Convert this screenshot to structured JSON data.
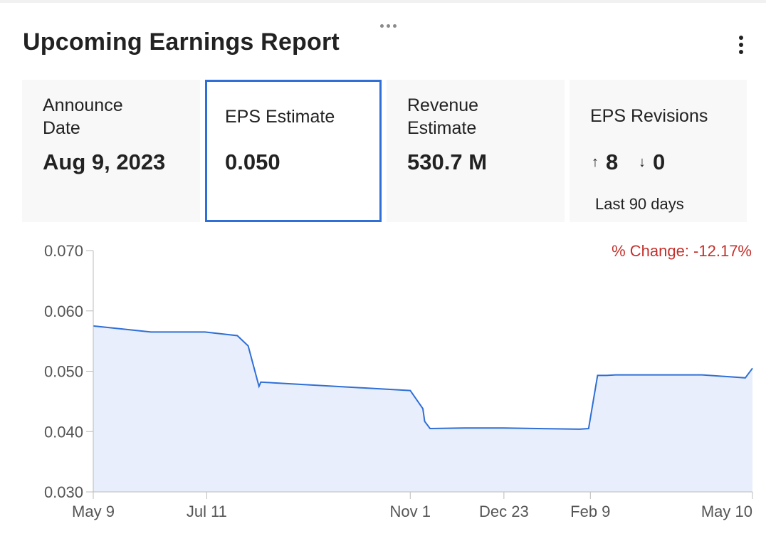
{
  "header": {
    "title": "Upcoming Earnings Report"
  },
  "cards": {
    "announce": {
      "label_line1": "Announce",
      "label_line2": "Date",
      "value": "Aug 9, 2023"
    },
    "eps": {
      "label": "EPS Estimate",
      "value": "0.050"
    },
    "revenue": {
      "label_line1": "Revenue",
      "label_line2": "Estimate",
      "value": "530.7 M"
    },
    "revisions": {
      "label": "EPS Revisions",
      "up_icon": "arrow-up-icon",
      "up": "8",
      "down_icon": "arrow-down-icon",
      "down": "0",
      "period": "Last 90 days"
    }
  },
  "colors": {
    "accent": "#2f6fd6",
    "line": "#2f6fd6",
    "area": "#e8eefb",
    "negative": "#c4302b"
  },
  "chart_data": {
    "type": "area",
    "title": "",
    "xlabel": "",
    "ylabel": "",
    "ylim": [
      0.03,
      0.07
    ],
    "yticks": [
      "0.070",
      "0.060",
      "0.050",
      "0.040",
      "0.030"
    ],
    "xlim": [
      "2022-05-09",
      "2023-05-10"
    ],
    "xticks": [
      {
        "label": "May 9",
        "date": "2022-05-09"
      },
      {
        "label": "Jul 11",
        "date": "2022-07-11"
      },
      {
        "label": "Nov 1",
        "date": "2022-11-01"
      },
      {
        "label": "Dec 23",
        "date": "2022-12-23"
      },
      {
        "label": "Feb 9",
        "date": "2023-02-09"
      },
      {
        "label": "May 10",
        "date": "2023-05-10"
      }
    ],
    "annotation": "% Change: -12.17%",
    "grid": false,
    "series": [
      {
        "name": "",
        "x": [
          "2022-05-09",
          "2022-06-10",
          "2022-07-10",
          "2022-07-28",
          "2022-08-03",
          "2022-08-09",
          "2022-08-10",
          "2022-08-10",
          "2022-11-01",
          "2022-11-08",
          "2022-11-09",
          "2022-11-12",
          "2022-12-01",
          "2022-12-23",
          "2023-02-03",
          "2023-02-08",
          "2023-02-13",
          "2023-02-18",
          "2023-02-23",
          "2023-03-15",
          "2023-04-12",
          "2023-05-06",
          "2023-05-10"
        ],
        "values": [
          0.0575,
          0.0565,
          0.0565,
          0.0559,
          0.0542,
          0.0475,
          0.0482,
          0.0482,
          0.0468,
          0.0438,
          0.0417,
          0.0405,
          0.0406,
          0.0406,
          0.0404,
          0.0405,
          0.0493,
          0.0493,
          0.0494,
          0.0494,
          0.0494,
          0.0489,
          0.0505
        ]
      }
    ]
  }
}
